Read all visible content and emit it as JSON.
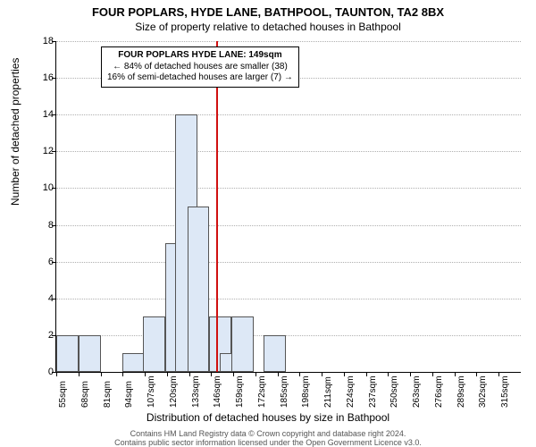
{
  "title_main": "FOUR POPLARS, HYDE LANE, BATHPOOL, TAUNTON, TA2 8BX",
  "title_sub": "Size of property relative to detached houses in Bathpool",
  "chart": {
    "type": "histogram",
    "ylabel": "Number of detached properties",
    "xlabel": "Distribution of detached houses by size in Bathpool",
    "ylim": [
      0,
      18
    ],
    "ytick_step": 2,
    "bar_color": "#dde8f6",
    "bar_border": "#555555",
    "grid_color": "#b0b0b0",
    "background_color": "#ffffff",
    "ref_line_color": "#d01010",
    "ref_line_value": 149,
    "x_start": 55,
    "x_step": 13,
    "x_count": 21,
    "x_unit": "sqm",
    "bars": [
      {
        "x": 55,
        "count": 2
      },
      {
        "x": 68,
        "count": 2
      },
      {
        "x": 81,
        "count": 0
      },
      {
        "x": 94,
        "count": 1
      },
      {
        "x": 106,
        "count": 3
      },
      {
        "x": 119,
        "count": 7
      },
      {
        "x": 125,
        "count": 14
      },
      {
        "x": 132,
        "count": 9
      },
      {
        "x": 145,
        "count": 3
      },
      {
        "x": 151,
        "count": 1
      },
      {
        "x": 158,
        "count": 3
      },
      {
        "x": 177,
        "count": 2
      }
    ]
  },
  "annotation": {
    "line1": "FOUR POPLARS HYDE LANE: 149sqm",
    "line2": "← 84% of detached houses are smaller (38)",
    "line3": "16% of semi-detached houses are larger (7) →"
  },
  "footer": {
    "line1": "Contains HM Land Registry data © Crown copyright and database right 2024.",
    "line2": "Contains public sector information licensed under the Open Government Licence v3.0."
  }
}
